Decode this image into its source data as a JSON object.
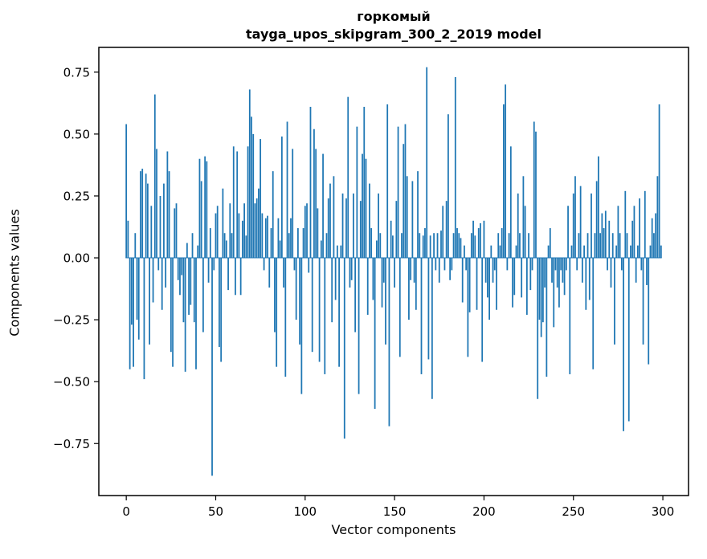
{
  "figure": {
    "title_line1": "горкомый",
    "title_line2": "tayga_upos_skipgram_300_2_2019 model",
    "xlabel": "Vector components",
    "ylabel": "Components values"
  },
  "chart_data": {
    "type": "bar",
    "title": "горкомый — tayga_upos_skipgram_300_2_2019 model",
    "xlabel": "Vector components",
    "ylabel": "Components values",
    "bar_color": "#1f77b4",
    "n_components": 300,
    "xlim": [
      -15.35,
      314.35
    ],
    "ylim": [
      -0.96,
      0.85
    ],
    "x_ticks": [
      0,
      50,
      100,
      150,
      200,
      250,
      300
    ],
    "x_tick_labels": [
      "0",
      "50",
      "100",
      "150",
      "200",
      "250",
      "300"
    ],
    "y_ticks": [
      -0.75,
      -0.5,
      -0.25,
      0,
      0.25,
      0.5,
      0.75
    ],
    "y_tick_labels": [
      "−0.75",
      "−0.50",
      "−0.25",
      "0.00",
      "0.25",
      "0.50",
      "0.75"
    ],
    "grid": false,
    "legend": "none",
    "values": [
      0.54,
      0.15,
      -0.45,
      -0.27,
      -0.44,
      0.1,
      -0.25,
      -0.33,
      0.35,
      0.36,
      -0.49,
      0.34,
      0.3,
      -0.35,
      0.21,
      -0.18,
      0.66,
      0.44,
      -0.05,
      0.25,
      -0.21,
      0.3,
      -0.12,
      0.43,
      0.35,
      -0.38,
      -0.44,
      0.2,
      0.22,
      -0.09,
      -0.15,
      -0.07,
      -0.26,
      -0.46,
      0.06,
      -0.23,
      -0.19,
      0.1,
      -0.26,
      -0.45,
      0.05,
      0.4,
      0.31,
      -0.3,
      0.41,
      0.39,
      -0.1,
      0.12,
      -0.88,
      -0.05,
      0.18,
      0.21,
      -0.36,
      -0.42,
      0.28,
      0.1,
      0.07,
      -0.13,
      0.22,
      0.1,
      0.45,
      -0.15,
      0.43,
      0.18,
      -0.15,
      0.15,
      0.22,
      0.09,
      0.45,
      0.68,
      0.57,
      0.5,
      0.22,
      0.24,
      0.28,
      0.48,
      0.18,
      -0.05,
      0.16,
      0.17,
      -0.12,
      0.12,
      0.35,
      -0.3,
      -0.44,
      0.16,
      0.07,
      0.49,
      -0.12,
      -0.48,
      0.55,
      0.1,
      0.16,
      0.44,
      -0.05,
      -0.25,
      0.12,
      -0.35,
      -0.55,
      0.12,
      0.21,
      0.22,
      -0.06,
      0.61,
      -0.38,
      0.52,
      0.44,
      0.2,
      -0.42,
      0.07,
      0.42,
      -0.47,
      0.1,
      0.24,
      0.3,
      -0.26,
      0.33,
      -0.17,
      0.05,
      -0.44,
      0.05,
      0.26,
      -0.73,
      0.24,
      0.65,
      -0.12,
      -0.09,
      0.26,
      -0.3,
      0.53,
      -0.55,
      0.23,
      0.42,
      0.61,
      0.4,
      -0.23,
      0.3,
      0.12,
      -0.17,
      -0.61,
      0.07,
      0.26,
      0.1,
      -0.2,
      -0.1,
      -0.35,
      0.62,
      -0.68,
      0.15,
      0.09,
      -0.12,
      0.23,
      0.53,
      -0.4,
      0.1,
      0.46,
      0.54,
      0.33,
      -0.25,
      -0.09,
      0.31,
      -0.1,
      -0.21,
      0.35,
      0.1,
      -0.47,
      0.09,
      0.12,
      0.77,
      -0.41,
      0.09,
      -0.57,
      0.1,
      -0.05,
      0.1,
      -0.1,
      0.11,
      0.21,
      -0.05,
      0.23,
      0.58,
      -0.09,
      -0.05,
      0.1,
      0.73,
      0.12,
      0.1,
      0.08,
      -0.18,
      0.05,
      -0.05,
      -0.4,
      -0.22,
      0.1,
      0.15,
      0.09,
      -0.21,
      0.12,
      0.14,
      -0.42,
      0.15,
      -0.1,
      -0.16,
      -0.25,
      0.05,
      -0.1,
      -0.05,
      -0.21,
      0.1,
      0.05,
      0.12,
      0.62,
      0.7,
      -0.05,
      0.1,
      0.45,
      -0.2,
      -0.15,
      0.05,
      0.26,
      0.1,
      -0.16,
      0.33,
      0.21,
      -0.23,
      0.1,
      -0.13,
      -0.05,
      0.55,
      0.51,
      -0.57,
      -0.25,
      -0.32,
      -0.26,
      -0.12,
      -0.48,
      0.05,
      0.12,
      -0.1,
      -0.28,
      -0.05,
      -0.12,
      -0.2,
      -0.05,
      -0.1,
      -0.15,
      -0.05,
      0.21,
      -0.47,
      0.05,
      0.26,
      0.33,
      -0.05,
      0.1,
      0.29,
      -0.1,
      0.05,
      -0.21,
      0.1,
      -0.17,
      0.26,
      -0.45,
      0.1,
      0.31,
      0.41,
      0.1,
      0.18,
      0.12,
      0.19,
      -0.05,
      0.15,
      -0.12,
      0.1,
      -0.35,
      0.05,
      0.21,
      0.1,
      -0.05,
      -0.7,
      0.27,
      0.1,
      -0.66,
      0.05,
      0.15,
      0.21,
      -0.1,
      0.05,
      0.24,
      -0.05,
      -0.35,
      0.27,
      -0.11,
      -0.43,
      0.05,
      0.16,
      0.1,
      0.18,
      0.33,
      0.62,
      0.05
    ]
  }
}
